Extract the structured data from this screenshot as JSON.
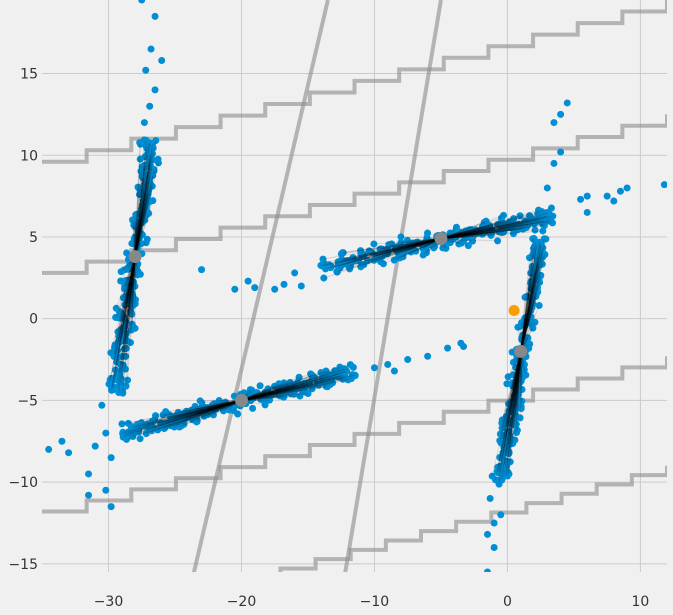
{
  "chart_data": {
    "type": "scatter",
    "title": "",
    "xlabel": "",
    "ylabel": "",
    "xlim": [
      -35,
      12
    ],
    "ylim": [
      -15.5,
      19.5
    ],
    "x_ticks": [
      -30,
      -20,
      -10,
      0,
      10
    ],
    "y_ticks": [
      -15,
      -10,
      -5,
      0,
      5,
      10,
      15
    ],
    "grid": true,
    "colors": {
      "background": "#f0f0f0",
      "grid": "#cbcbcb",
      "points": "#008fd5",
      "cluster_line": "#000000",
      "centroid": "#888888",
      "boundary": "#8a8a8a",
      "highlight": "#fc9c00"
    },
    "clusters": [
      {
        "center": [
          -28.0,
          3.8
        ],
        "from": [
          -29.5,
          -4.5
        ],
        "to": [
          -26.8,
          11.0
        ],
        "n": 260,
        "spread": 0.35
      },
      {
        "center": [
          -5.0,
          4.9
        ],
        "from": [
          -14.0,
          3.1
        ],
        "to": [
          3.5,
          6.3
        ],
        "n": 260,
        "spread": 0.3
      },
      {
        "center": [
          1.0,
          -2.0
        ],
        "from": [
          -0.5,
          -10.2
        ],
        "to": [
          2.5,
          5.0
        ],
        "n": 260,
        "spread": 0.3
      },
      {
        "center": [
          -20.0,
          -5.0
        ],
        "from": [
          -29.0,
          -7.0
        ],
        "to": [
          -11.5,
          -3.2
        ],
        "n": 260,
        "spread": 0.3
      }
    ],
    "outliers": [
      [
        -27.5,
        19.5
      ],
      [
        -26.5,
        18.5
      ],
      [
        -26.8,
        16.5
      ],
      [
        -27.2,
        15.2
      ],
      [
        -26.5,
        14.0
      ],
      [
        -26.0,
        15.8
      ],
      [
        -26.9,
        13.0
      ],
      [
        -27.3,
        12.0
      ],
      [
        -33.5,
        -7.5
      ],
      [
        -31.0,
        -7.8
      ],
      [
        -29.8,
        -8.5
      ],
      [
        -31.5,
        -9.5
      ],
      [
        -30.2,
        -10.5
      ],
      [
        -29.8,
        -11.5
      ],
      [
        -31.5,
        -10.8
      ],
      [
        -30.2,
        -7.0
      ],
      [
        -30.5,
        -5.3
      ],
      [
        -34.5,
        -8.0
      ],
      [
        -33.0,
        -8.2
      ],
      [
        -20.5,
        1.8
      ],
      [
        -19.5,
        2.3
      ],
      [
        -19.0,
        1.9
      ],
      [
        -17.5,
        1.8
      ],
      [
        -16.0,
        2.8
      ],
      [
        -16.8,
        2.1
      ],
      [
        -15.5,
        2.0
      ],
      [
        -10.0,
        -3.0
      ],
      [
        -9.0,
        -2.8
      ],
      [
        -7.5,
        -2.5
      ],
      [
        -6.0,
        -2.3
      ],
      [
        -4.5,
        -1.8
      ],
      [
        -3.5,
        -1.5
      ],
      [
        -3.3,
        -1.7
      ],
      [
        -8.5,
        -3.2
      ],
      [
        4.0,
        10.2
      ],
      [
        3.5,
        12.0
      ],
      [
        4.5,
        13.2
      ],
      [
        4.0,
        12.5
      ],
      [
        3.5,
        9.5
      ],
      [
        3.0,
        8.0
      ],
      [
        5.5,
        7.3
      ],
      [
        6.0,
        7.5
      ],
      [
        7.5,
        7.5
      ],
      [
        8.5,
        7.8
      ],
      [
        9.0,
        8.0
      ],
      [
        11.8,
        8.2
      ],
      [
        6.0,
        6.5
      ],
      [
        8.0,
        7.2
      ],
      [
        -1.5,
        -13.2
      ],
      [
        -1.0,
        -14.0
      ],
      [
        -1.5,
        -15.5
      ],
      [
        -0.5,
        -12.0
      ],
      [
        -1.0,
        -12.5
      ],
      [
        -1.3,
        -11.0
      ],
      [
        -23.0,
        3.0
      ]
    ],
    "centroids": [
      [
        -28.0,
        3.8
      ],
      [
        -5.0,
        4.9
      ],
      [
        1.0,
        -2.0
      ],
      [
        -20.0,
        -5.0
      ]
    ],
    "highlight_point": [
      0.5,
      0.5
    ],
    "boundaries": [
      {
        "kind": "near-horizontal",
        "from": [
          -35,
          2.8
        ],
        "to": [
          12,
          12.5
        ]
      },
      {
        "kind": "near-horizontal",
        "from": [
          -35,
          -11.8
        ],
        "to": [
          12,
          -2.3
        ]
      },
      {
        "kind": "near-horizontal",
        "from": [
          -35,
          9.6
        ],
        "to": [
          12,
          19.5
        ]
      },
      {
        "kind": "near-horizontal",
        "from": [
          -25,
          -17.0
        ],
        "to": [
          12,
          -9.0
        ]
      },
      {
        "kind": "near-vertical",
        "from": [
          -24,
          -17.0
        ],
        "to": [
          -13.5,
          19.5
        ]
      },
      {
        "kind": "near-vertical",
        "from": [
          -12.5,
          -17.0
        ],
        "to": [
          -5.0,
          19.5
        ]
      }
    ]
  }
}
